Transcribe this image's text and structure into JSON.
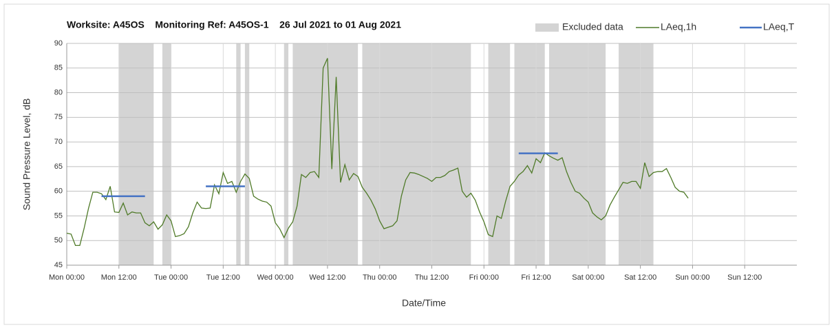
{
  "chart_data": {
    "type": "line",
    "title": "Worksite: A45OS    Monitoring Ref: A45OS-1    26 Jul 2021 to 01 Aug 2021",
    "x_label": "Date/Time",
    "y_label": "Sound Pressure Level, dB",
    "xlim": [
      0,
      168
    ],
    "xticks": [
      {
        "value": 0,
        "label": "Mon 00:00"
      },
      {
        "value": 12,
        "label": "Mon 12:00"
      },
      {
        "value": 24,
        "label": "Tue 00:00"
      },
      {
        "value": 36,
        "label": "Tue 12:00"
      },
      {
        "value": 48,
        "label": "Wed 00:00"
      },
      {
        "value": 60,
        "label": "Wed 12:00"
      },
      {
        "value": 72,
        "label": "Thu 00:00"
      },
      {
        "value": 84,
        "label": "Thu 12:00"
      },
      {
        "value": 96,
        "label": "Fri 00:00"
      },
      {
        "value": 108,
        "label": "Fri 12:00"
      },
      {
        "value": 120,
        "label": "Sat 00:00"
      },
      {
        "value": 132,
        "label": "Sat 12:00"
      },
      {
        "value": 144,
        "label": "Sun 00:00"
      },
      {
        "value": 156,
        "label": "Sun 12:00"
      }
    ],
    "ylim": [
      45,
      90
    ],
    "yticks": [
      45,
      50,
      55,
      60,
      65,
      70,
      75,
      80,
      85,
      90
    ],
    "grid": true,
    "legend": "top-right",
    "series": [
      {
        "name": "Excluded data",
        "color": "#d4d4d4",
        "ranges": [
          [
            12,
            20
          ],
          [
            22,
            24
          ],
          [
            39,
            40
          ],
          [
            41,
            42
          ],
          [
            50,
            51
          ],
          [
            52,
            67
          ],
          [
            68,
            93
          ],
          [
            97,
            102
          ],
          [
            103,
            110
          ],
          [
            111,
            124
          ],
          [
            127,
            135
          ]
        ]
      },
      {
        "name": "LAeq,1h",
        "color": "#4f7a28",
        "x": [
          0,
          1,
          2,
          3,
          4,
          5,
          6,
          7,
          8,
          9,
          10,
          11,
          12,
          13,
          14,
          15,
          16,
          17,
          18,
          19,
          20,
          21,
          22,
          23,
          24,
          25,
          26,
          27,
          28,
          29,
          30,
          31,
          32,
          33,
          34,
          35,
          36,
          37,
          38,
          39,
          40,
          41,
          42,
          43,
          44,
          45,
          46,
          47,
          48,
          49,
          50,
          51,
          52,
          53,
          54,
          55,
          56,
          57,
          58,
          59,
          60,
          61,
          62,
          63,
          64,
          65,
          66,
          67,
          68,
          69,
          70,
          71,
          72,
          73,
          74,
          75,
          76,
          77,
          78,
          79,
          80,
          81,
          82,
          83,
          84,
          85,
          86,
          87,
          88,
          89,
          90,
          91,
          92,
          93,
          94,
          95,
          96,
          97,
          98,
          99,
          100,
          101,
          102,
          103,
          104,
          105,
          106,
          107,
          108,
          109,
          110,
          111,
          112,
          113,
          114,
          115,
          116,
          117,
          118,
          119,
          120,
          121,
          122,
          123,
          124,
          125,
          126,
          127,
          128,
          129,
          130,
          131,
          132,
          133,
          134,
          135,
          136,
          137,
          138,
          139,
          140,
          141,
          142,
          143
        ],
        "values": [
          51.5,
          51.3,
          49,
          49,
          52.5,
          56.5,
          59.8,
          59.8,
          59.5,
          58.3,
          61,
          55.8,
          55.7,
          57.6,
          55.2,
          55.8,
          55.6,
          55.6,
          53.6,
          53,
          53.8,
          52.3,
          53.2,
          55.2,
          54,
          50.8,
          51,
          51.4,
          52.8,
          55.6,
          57.8,
          56.6,
          56.5,
          56.6,
          61.3,
          59.5,
          63.8,
          61.6,
          62,
          59.8,
          62,
          63.5,
          62.6,
          59,
          58.4,
          58,
          57.8,
          57,
          53.6,
          52.4,
          50.6,
          52.5,
          53.8,
          57,
          63.4,
          62.8,
          63.8,
          64,
          62.8,
          85,
          87,
          64.5,
          83.2,
          61.8,
          65.4,
          62.3,
          63.6,
          63,
          60.8,
          59.6,
          58.2,
          56.4,
          54,
          52.4,
          52.7,
          53,
          54,
          59,
          62.3,
          63.8,
          63.7,
          63.4,
          63,
          62.6,
          62,
          62.8,
          62.8,
          63.2,
          64,
          64.3,
          64.7,
          60,
          58.8,
          59.6,
          58.2,
          55.8,
          53.8,
          51.2,
          50.8,
          55,
          54.5,
          58,
          61,
          62,
          63.3,
          64,
          65.2,
          63.7,
          66.6,
          65.8,
          67.8,
          67.2,
          66.7,
          66.3,
          66.8,
          64,
          61.8,
          60,
          59.6,
          58.6,
          57.8,
          55.6,
          54.8,
          54.2,
          55,
          57.2,
          58.8,
          60.3,
          61.8,
          61.6,
          62,
          62,
          60.6,
          65.8,
          63,
          63.8,
          64,
          64,
          64.6,
          62.8,
          60.8,
          60,
          59.8,
          58.6
        ]
      },
      {
        "name": "LAeq,T",
        "color": "#4472c4",
        "segments": [
          {
            "x": [
              8,
              18
            ],
            "value": 59
          },
          {
            "x": [
              32,
              41
            ],
            "value": 61
          },
          {
            "x": [
              104,
              113
            ],
            "value": 67.7
          }
        ]
      }
    ]
  }
}
